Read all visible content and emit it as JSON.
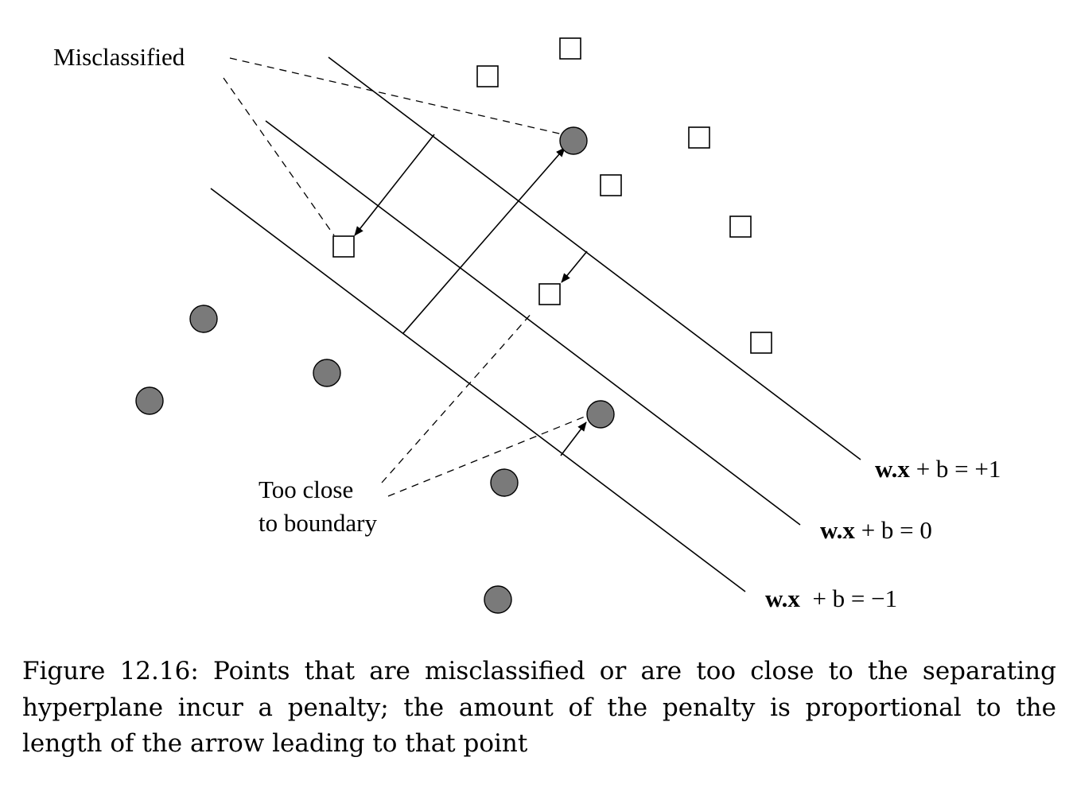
{
  "labels": {
    "misclassified": "Misclassified",
    "too_close_line1": "Too close",
    "too_close_line2": "to boundary"
  },
  "equations": {
    "plus_one": {
      "lhs": "w.x",
      "rhs": " + b = +1"
    },
    "zero": {
      "lhs": "w.x",
      "rhs": " + b = 0"
    },
    "minus_one": {
      "lhs": "w.x",
      "rhs": "  + b = −1"
    }
  },
  "caption": "Figure 12.16: Points that are misclassified or are too close to the separating hyperplane incur a penalty; the amount of the penalty is proportional to the length of the arrow leading to that point",
  "colors": {
    "circle_fill": "#7a7a7a",
    "square_fill": "#ffffff",
    "stroke": "#000000"
  }
}
